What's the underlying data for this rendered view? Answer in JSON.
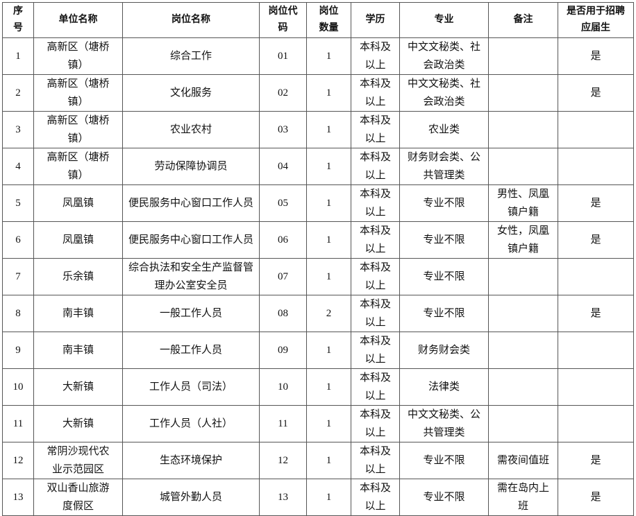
{
  "table": {
    "header": [
      "序号",
      "单位名称",
      "岗位名称",
      "岗位代码",
      "岗位数量",
      "学历",
      "专业",
      "备注",
      "是否用于招聘应届生"
    ],
    "rows": [
      [
        "1",
        "高新区（塘桥镇）",
        "综合工作",
        "01",
        "1",
        "本科及以上",
        "中文文秘类、社会政治类",
        null,
        "是"
      ],
      [
        "2",
        "高新区（塘桥镇）",
        "文化服务",
        "02",
        "1",
        "本科及以上",
        "中文文秘类、社会政治类",
        null,
        "是"
      ],
      [
        "3",
        "高新区（塘桥镇）",
        "农业农村",
        "03",
        "1",
        "本科及以上",
        "农业类",
        null,
        null
      ],
      [
        "4",
        "高新区（塘桥镇）",
        "劳动保障协调员",
        "04",
        "1",
        "本科及以上",
        "财务财会类、公共管理类",
        null,
        null
      ],
      [
        "5",
        "凤凰镇",
        "便民服务中心窗口工作人员",
        "05",
        "1",
        "本科及以上",
        "专业不限",
        "男性、凤凰镇户籍",
        "是"
      ],
      [
        "6",
        "凤凰镇",
        "便民服务中心窗口工作人员",
        "06",
        "1",
        "本科及以上",
        "专业不限",
        "女性，凤凰镇户籍",
        "是"
      ],
      [
        "7",
        "乐余镇",
        "综合执法和安全生产监督管理办公室安全员",
        "07",
        "1",
        "本科及以上",
        "专业不限",
        null,
        null
      ],
      [
        "8",
        "南丰镇",
        "一般工作人员",
        "08",
        "2",
        "本科及以上",
        "专业不限",
        null,
        "是"
      ],
      [
        "9",
        "南丰镇",
        "一般工作人员",
        "09",
        "1",
        "本科及以上",
        "财务财会类",
        null,
        null
      ],
      [
        "10",
        "大新镇",
        "工作人员（司法）",
        "10",
        "1",
        "本科及以上",
        "法律类",
        null,
        null
      ],
      [
        "11",
        "大新镇",
        "工作人员（人社）",
        "11",
        "1",
        "本科及以上",
        "中文文秘类、公共管理类",
        null,
        null
      ],
      [
        "12",
        "常阴沙现代农业示范园区",
        "生态环境保护",
        "12",
        "1",
        "本科及以上",
        "专业不限",
        "需夜间值班",
        "是"
      ],
      [
        "13",
        "双山香山旅游度假区",
        "城管外勤人员",
        "13",
        "1",
        "本科及以上",
        "专业不限",
        "需在岛内上班",
        "是"
      ]
    ]
  }
}
